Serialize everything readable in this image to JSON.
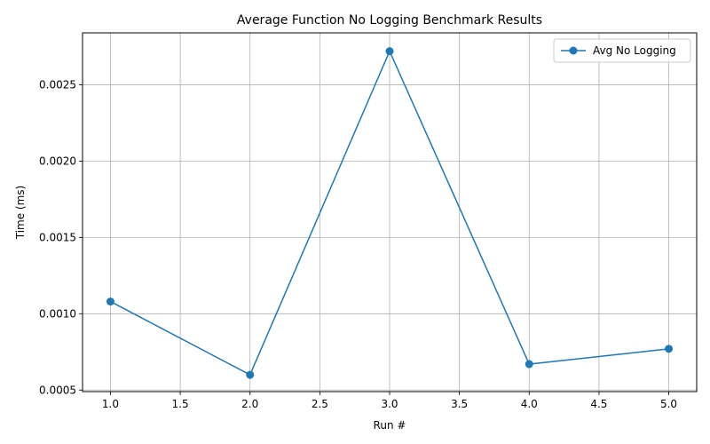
{
  "chart_data": {
    "type": "line",
    "title": "Average Function No Logging Benchmark Results",
    "xlabel": "Run #",
    "ylabel": "Time (ms)",
    "xlim": [
      0.8,
      5.2
    ],
    "ylim": [
      0.00049,
      0.00284
    ],
    "xticks": [
      1.0,
      1.5,
      2.0,
      2.5,
      3.0,
      3.5,
      4.0,
      4.5,
      5.0
    ],
    "xtick_labels": [
      "1.0",
      "1.5",
      "2.0",
      "2.5",
      "3.0",
      "3.5",
      "4.0",
      "4.5",
      "5.0"
    ],
    "yticks": [
      0.0005,
      0.001,
      0.0015,
      0.002,
      0.0025
    ],
    "ytick_labels": [
      "0.0005",
      "0.0010",
      "0.0015",
      "0.0020",
      "0.0025"
    ],
    "grid": true,
    "legend_position": "top-right",
    "series": [
      {
        "name": "Avg No Logging",
        "color": "#1f77b4",
        "marker": "circle",
        "x": [
          1,
          2,
          3,
          4,
          5
        ],
        "y": [
          0.00108,
          0.0006,
          0.00272,
          0.00067,
          0.00077
        ]
      }
    ]
  }
}
